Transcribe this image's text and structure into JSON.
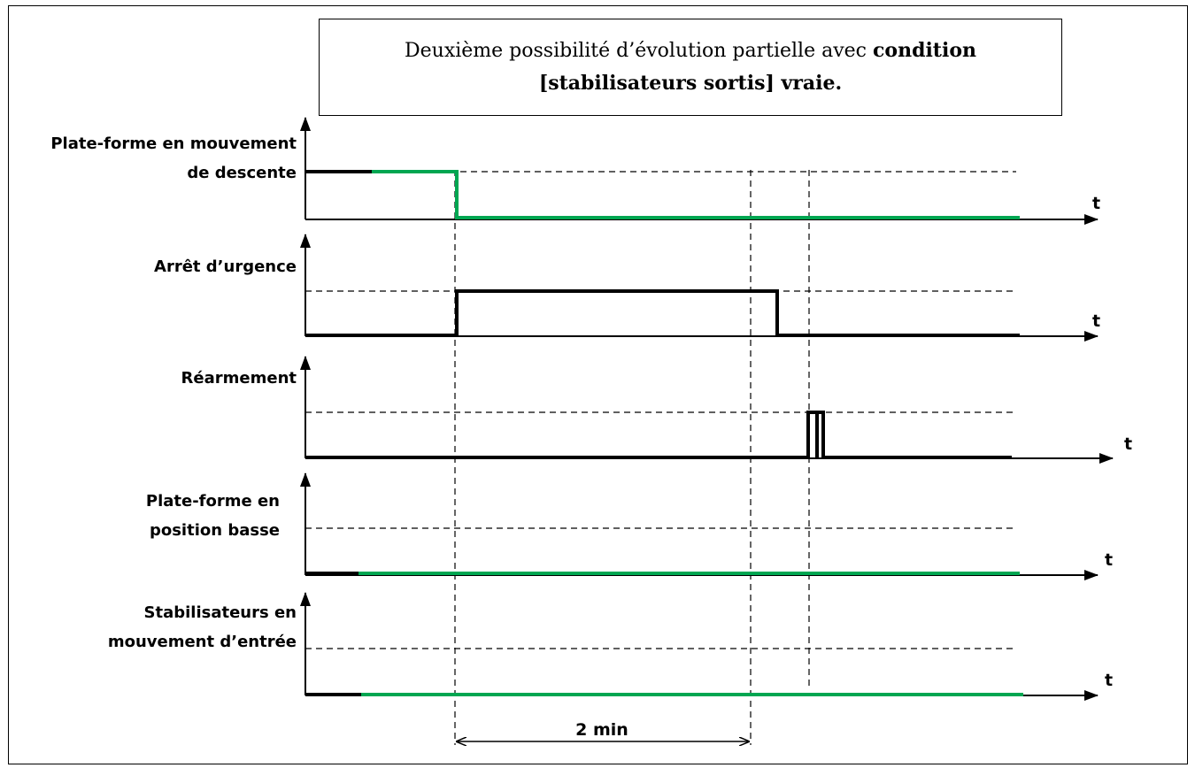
{
  "title": {
    "line1_normal": "Deuxième possibilité d’évolution partielle avec ",
    "line1_bold": "condition",
    "line2_bold": "[stabilisateurs sortis] vraie."
  },
  "signals": [
    {
      "label_lines": [
        "Plate-forme en mouvement",
        "de descente"
      ],
      "axis_label": "t"
    },
    {
      "label_lines": [
        "Arrêt d’urgence"
      ],
      "axis_label": "t"
    },
    {
      "label_lines": [
        "Réarmement"
      ],
      "axis_label": "t"
    },
    {
      "label_lines": [
        "Plate-forme en",
        "position basse"
      ],
      "axis_label": "t"
    },
    {
      "label_lines": [
        "Stabilisateurs en",
        "mouvement d’entrée"
      ],
      "axis_label": "t"
    }
  ],
  "duration_label": "2 min",
  "colors": {
    "signal_black": "#000000",
    "signal_green": "#00a651"
  }
}
